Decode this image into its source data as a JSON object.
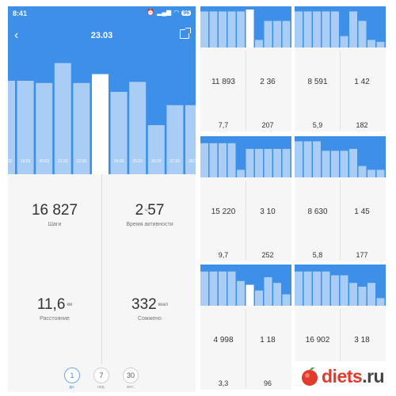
{
  "status_bar": {
    "time": "8:41",
    "battery": "96"
  },
  "header": {
    "date_title": "23.03"
  },
  "main_chart": {
    "tick_labels": [
      "18.03",
      "19.03",
      "20.03",
      "21.03",
      "22.03",
      "23.03",
      "24.03",
      "25.03",
      "26.03",
      "27.03",
      "28.03"
    ],
    "selected_index": 5,
    "bars": [
      0.7,
      0.7,
      0.68,
      0.86,
      0.68,
      0.76,
      0.6,
      0.69,
      0.3,
      0.48,
      0.48
    ],
    "colors": {
      "header": "#3d8fe8",
      "bar": "#a9cdf4",
      "selected": "#ffffff"
    }
  },
  "stats": {
    "steps": {
      "value": "16 827",
      "label": "Шаги"
    },
    "active_time": {
      "value": "2",
      "value_min": "57",
      "unit": "ч",
      "label": "Время активности"
    },
    "distance": {
      "value": "11,6",
      "unit": "км",
      "label": "Расстояние"
    },
    "calories": {
      "value": "332",
      "unit": "ккал",
      "label": "Сожжено"
    }
  },
  "periods": [
    {
      "value": "1",
      "label": "дн.",
      "active": true
    },
    {
      "value": "7",
      "label": "нед.",
      "active": false
    },
    {
      "value": "30",
      "label": "мес.",
      "active": false
    }
  ],
  "cards": [
    {
      "steps": "11 893",
      "time": "2 36",
      "distance": "7,7",
      "calories": "207",
      "bars": [
        0.95,
        0.95,
        0.95,
        0.95,
        0.95,
        1.0,
        0.2,
        0.7,
        0.7,
        0.7
      ],
      "highlight": 5
    },
    {
      "steps": "8 591",
      "time": "1 42",
      "distance": "5,9",
      "calories": "182",
      "bars": [
        0.95,
        0.95,
        0.95,
        0.95,
        0.95,
        0.3,
        0.95,
        0.7,
        0.2,
        0.15
      ],
      "highlight": -1
    },
    {
      "steps": "15 220",
      "time": "3 10",
      "distance": "9,7",
      "calories": "252",
      "bars": [
        0.9,
        0.9,
        0.9,
        0.9,
        0.2,
        0.75,
        0.75,
        0.75,
        0.75,
        0.75
      ],
      "highlight": -1
    },
    {
      "steps": "8 630",
      "time": "1 45",
      "distance": "5,8",
      "calories": "177",
      "bars": [
        0.95,
        0.95,
        0.95,
        0.7,
        0.7,
        0.7,
        0.75,
        0.3,
        0.2,
        0.2
      ],
      "highlight": -1
    },
    {
      "steps": "4 998",
      "time": "1 18",
      "distance": "3,3",
      "calories": "96",
      "bars": [
        0.9,
        0.9,
        0.9,
        0.9,
        0.65,
        0.55,
        0.4,
        0.75,
        0.6,
        0.3
      ],
      "highlight": 5
    },
    {
      "steps": "16 902",
      "time": "3 18",
      "distance": "",
      "calories": "",
      "bars": [
        0.9,
        0.9,
        0.9,
        0.9,
        0.8,
        0.8,
        0.6,
        0.5,
        0.6,
        0.2
      ],
      "highlight": -1
    }
  ],
  "watermark": {
    "prefix": "",
    "accent": "diets",
    "suffix": ".ru"
  }
}
